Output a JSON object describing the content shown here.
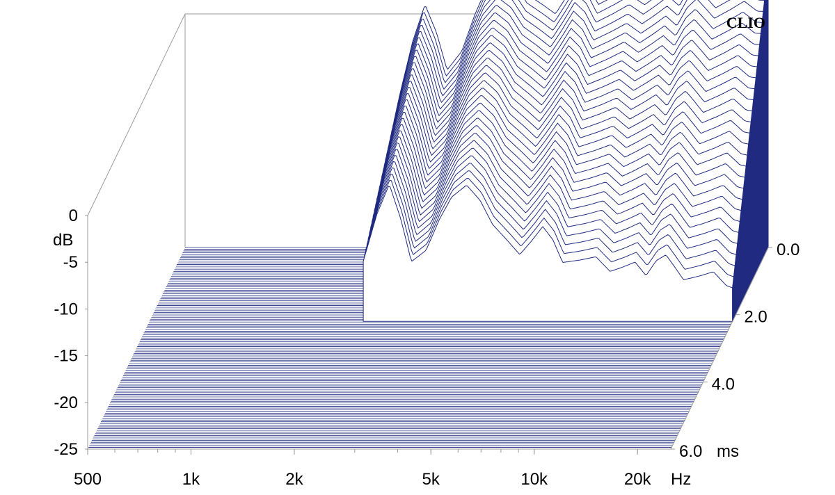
{
  "chart_data": {
    "type": "waterfall",
    "brand": "CLIO",
    "y_axis": {
      "unit": "dB",
      "ticks": [
        "0",
        "-5",
        "-10",
        "-15",
        "-20",
        "-25"
      ],
      "tick_values": [
        0,
        -5,
        -10,
        -15,
        -20,
        -25
      ],
      "range": [
        -25,
        0
      ]
    },
    "x_axis": {
      "unit": "Hz",
      "scale": "log",
      "range": [
        500,
        25000
      ],
      "ticks": [
        "500",
        "1k",
        "2k",
        "5k",
        "10k",
        "20k"
      ],
      "tick_values": [
        500,
        1000,
        2000,
        5000,
        10000,
        20000
      ]
    },
    "z_axis": {
      "unit": "ms",
      "ticks": [
        "0.0",
        "2.0",
        "4.0",
        "6.0"
      ],
      "tick_values": [
        0,
        2,
        4,
        6
      ],
      "range": [
        0,
        6
      ]
    },
    "series_color": "#1f2a80",
    "initial_response_db": {
      "freq_hz": [
        2100,
        2300,
        2500,
        2700,
        2900,
        3200,
        3500,
        3800,
        4200,
        4600,
        5000,
        5500,
        6000,
        6500,
        7000,
        7500,
        8000,
        9000,
        10000,
        11000,
        12000,
        13000,
        14000,
        15000,
        16000,
        17000,
        18000,
        20000,
        22000,
        24000,
        25000
      ],
      "level_db": [
        -9,
        -3,
        1,
        -2,
        -6,
        -4,
        0,
        3,
        5,
        4,
        2,
        1,
        0,
        2,
        4,
        3,
        1,
        2,
        3,
        2,
        3,
        4,
        3,
        5,
        6,
        5,
        4,
        5,
        6,
        5,
        5
      ]
    }
  }
}
